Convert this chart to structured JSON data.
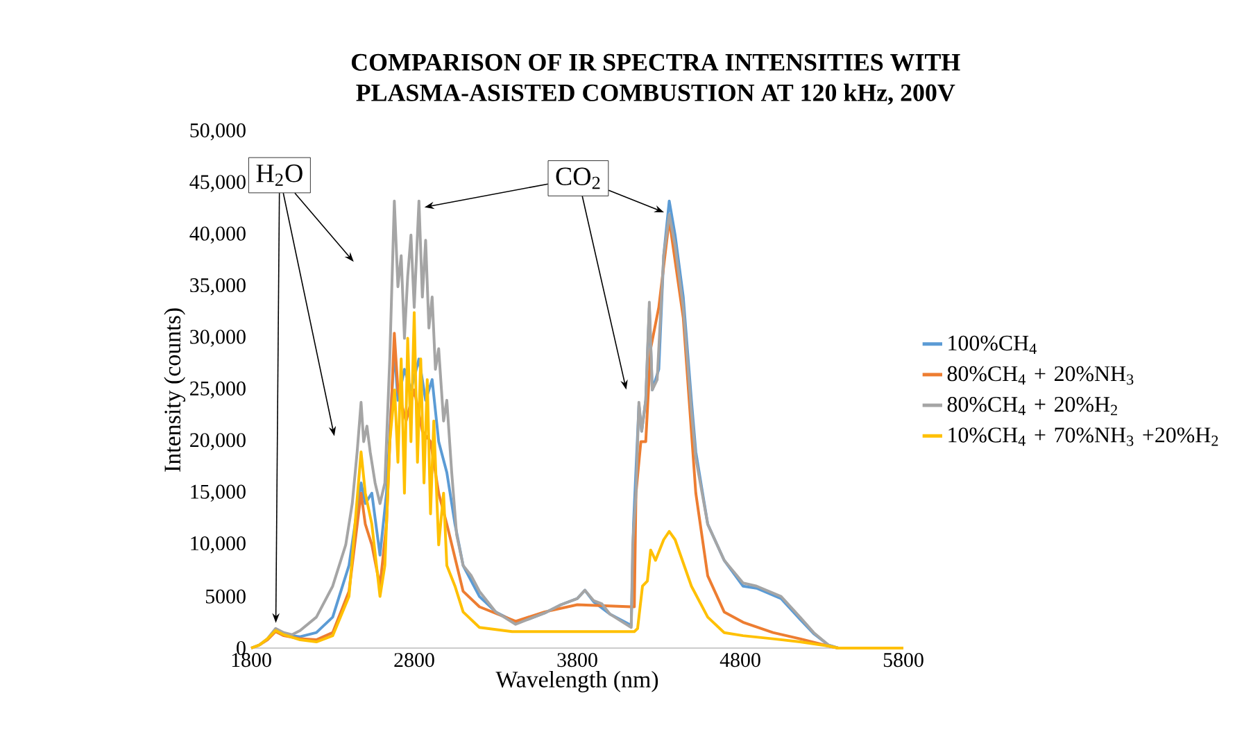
{
  "chart_data": {
    "type": "line",
    "title": "COMPARISON OF IR SPECTRA INTENSITIES WITH PLASMA-ASISTED COMBUSTION AT 120 kHz, 200V",
    "xlabel": "Wavelength (nm)",
    "ylabel": "Intensity (counts)",
    "xlim": [
      1800,
      5800
    ],
    "xticks": [
      1800,
      2800,
      3800,
      4800,
      5800
    ],
    "ylim": [
      0,
      50000
    ],
    "yticks": [
      0,
      5000,
      {
        "value": 10000,
        "label": "10,000"
      },
      {
        "value": 15000,
        "label": "15,000"
      },
      {
        "value": 20000,
        "label": "20,000"
      },
      {
        "value": 25000,
        "label": "25,000"
      },
      {
        "value": 30000,
        "label": "30,000"
      },
      {
        "value": 35000,
        "label": "35,000"
      },
      {
        "value": 40000,
        "label": "40,000"
      },
      {
        "value": 45000,
        "label": "45,000"
      },
      {
        "value": 50000,
        "label": "50,000"
      }
    ],
    "legend": "right",
    "marker": "none",
    "line_style": "solid",
    "annotations": [
      {
        "text": "H$_{2}$O",
        "x": 1951,
        "y": 1900
      },
      {
        "text": "CO$_{2}$",
        "x": 4364,
        "y": 42000
      }
    ],
    "series": [
      {
        "name": "100%CH$_{4}$",
        "color": "#5b9bd5",
        "x": [
          1950,
          2000,
          2100,
          2200,
          2300,
          2400,
          2474,
          2500,
          2540,
          2590,
          2630,
          2678,
          2700,
          2740,
          2780,
          2829,
          2870,
          2910,
          2950,
          3000,
          3050,
          3100,
          3200,
          3300,
          3422,
          3500,
          3600,
          3700,
          3800,
          3847,
          3900,
          4000,
          4131,
          4145,
          4178,
          4195,
          4220,
          4242,
          4260,
          4300,
          4330,
          4364,
          4400,
          4450,
          4500,
          4527,
          4600,
          4701,
          4817,
          4900,
          5050,
          5166,
          5250,
          5340,
          5400,
          5800
        ],
        "values": [
          1600,
          1300,
          1100,
          1500,
          3000,
          8000,
          16000,
          14000,
          15000,
          9000,
          15000,
          29000,
          24000,
          27000,
          25000,
          28000,
          24000,
          26000,
          20000,
          17000,
          12000,
          8000,
          5000,
          3500,
          2500,
          2800,
          3400,
          4200,
          4800,
          5600,
          4500,
          3300,
          2200,
          12000,
          23500,
          21000,
          24000,
          33000,
          25000,
          27000,
          38000,
          43300,
          40000,
          34000,
          24000,
          19000,
          12000,
          8500,
          6000,
          5800,
          4800,
          2800,
          1400,
          300,
          0,
          0
        ]
      },
      {
        "name": "80%CH$_{4}$ + 20%NH$_{3}$",
        "color": "#ed7d31",
        "x": [
          1800,
          1850,
          1900,
          1950,
          2000,
          2100,
          2200,
          2300,
          2400,
          2474,
          2500,
          2540,
          2590,
          2630,
          2678,
          2700,
          2750,
          2800,
          2850,
          2900,
          2950,
          3000,
          3100,
          3200,
          3422,
          3600,
          3800,
          4131,
          4150,
          4160,
          4190,
          4220,
          4250,
          4300,
          4364,
          4450,
          4527,
          4600,
          4701,
          4817,
          5000,
          5166,
          5340,
          5400,
          5800
        ],
        "values": [
          0,
          300,
          800,
          1600,
          1200,
          900,
          800,
          1500,
          5500,
          15000,
          12000,
          10000,
          6000,
          12000,
          30500,
          25000,
          22000,
          25000,
          21000,
          20000,
          15000,
          12000,
          5500,
          4000,
          2600,
          3500,
          4200,
          4000,
          4000,
          15000,
          20000,
          20000,
          29000,
          33000,
          41500,
          32000,
          15000,
          7000,
          3500,
          2500,
          1500,
          900,
          200,
          0,
          0
        ]
      },
      {
        "name": "80%CH$_{4}$ + 20%H$_{2}$",
        "color": "#a5a5a5",
        "x": [
          1800,
          1850,
          1900,
          1950,
          2000,
          2050,
          2100,
          2200,
          2300,
          2380,
          2420,
          2450,
          2474,
          2490,
          2510,
          2530,
          2560,
          2590,
          2620,
          2650,
          2678,
          2700,
          2720,
          2740,
          2760,
          2780,
          2800,
          2829,
          2850,
          2870,
          2890,
          2910,
          2930,
          2950,
          2980,
          3000,
          3030,
          3060,
          3100,
          3150,
          3200,
          3300,
          3422,
          3500,
          3600,
          3700,
          3800,
          3847,
          3900,
          3950,
          4000,
          4050,
          4131,
          4140,
          4160,
          4178,
          4195,
          4220,
          4242,
          4260,
          4290,
          4330,
          4364,
          4400,
          4450,
          4500,
          4527,
          4600,
          4701,
          4817,
          4900,
          5050,
          5166,
          5250,
          5340,
          5400,
          5800
        ],
        "values": [
          0,
          300,
          900,
          1900,
          1500,
          1300,
          1700,
          3000,
          6000,
          10000,
          14000,
          19000,
          23800,
          20000,
          21500,
          19000,
          16000,
          14000,
          16000,
          28000,
          43300,
          35000,
          38000,
          30000,
          36000,
          40000,
          33000,
          43300,
          34000,
          39500,
          31000,
          34000,
          27000,
          29000,
          22000,
          24000,
          17000,
          11000,
          8000,
          7000,
          5500,
          3500,
          2300,
          2800,
          3400,
          4200,
          4800,
          5600,
          4600,
          4300,
          3300,
          2800,
          2000,
          10000,
          15000,
          23800,
          21000,
          24000,
          33500,
          25000,
          26000,
          38000,
          42000,
          39000,
          33000,
          23000,
          18400,
          12000,
          8500,
          6300,
          6000,
          5000,
          3000,
          1500,
          300,
          0,
          0
        ]
      },
      {
        "name": "10%CH$_{4}$ + 70%NH$_{3}$ +20%H$_{2}$",
        "color": "#ffc000",
        "x": [
          1800,
          1850,
          1900,
          1950,
          2000,
          2100,
          2200,
          2300,
          2400,
          2474,
          2500,
          2540,
          2590,
          2620,
          2650,
          2680,
          2700,
          2720,
          2740,
          2760,
          2780,
          2800,
          2820,
          2840,
          2860,
          2880,
          2900,
          2920,
          2950,
          2980,
          3000,
          3050,
          3100,
          3200,
          3400,
          4150,
          4170,
          4200,
          4230,
          4250,
          4280,
          4330,
          4364,
          4400,
          4500,
          4600,
          4701,
          4817,
          5000,
          5166,
          5340,
          5400,
          5800
        ],
        "values": [
          0,
          300,
          900,
          1700,
          1300,
          800,
          600,
          1200,
          5000,
          19000,
          15000,
          12000,
          5000,
          8000,
          20000,
          25000,
          18000,
          28000,
          15000,
          30000,
          20000,
          32500,
          18000,
          28000,
          16000,
          26000,
          13000,
          22000,
          10000,
          15000,
          8000,
          6000,
          3500,
          2000,
          1600,
          1600,
          1900,
          6000,
          6500,
          9500,
          8500,
          10500,
          11300,
          10500,
          6000,
          3000,
          1500,
          1200,
          900,
          600,
          200,
          0,
          0
        ]
      }
    ]
  }
}
